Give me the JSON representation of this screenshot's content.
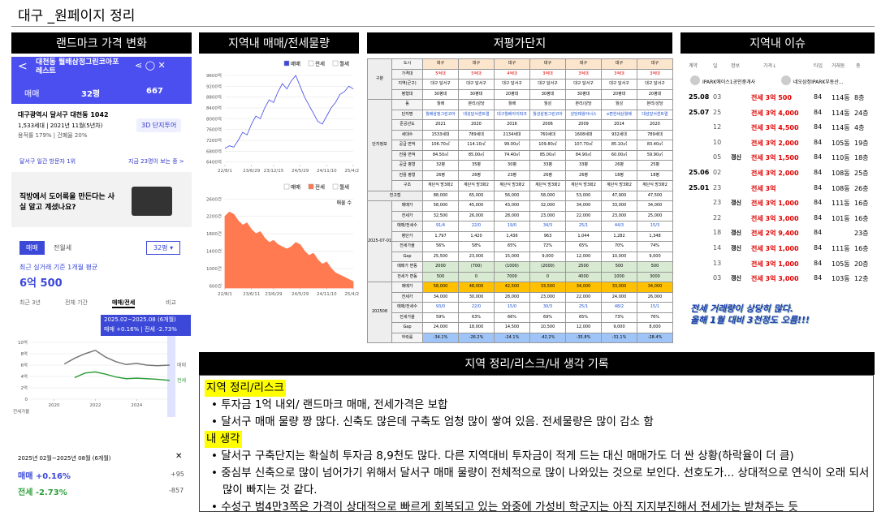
{
  "title": "대구 _원페이지 정리",
  "sections": {
    "landmark": "랜드마크 가격 변화",
    "trade": "지역내 매매/전세물량",
    "lowprice": "저평가단지",
    "issue": "지역내 이슈",
    "notes": "지역 정리/리스크/내 생각 기록"
  },
  "landmark": {
    "name": "대천동 월배삼정그린코아포레스트",
    "deal": "매매",
    "size": "32평",
    "count": "667",
    "address": "대구광역시 달서구 대천동 1042",
    "units": "1,533세대 | 2021년 11월(5년차)",
    "ratio": "용적률 179% | 건폐율 20%",
    "tour": "3D 단지투어",
    "visitor": "달서구 일간 방문자 1위",
    "watching": "지금 23명이 보는 중 >",
    "ad": "직방에서 도어록을 만든다는 사실 알고 계셨나요?",
    "tabs": [
      "매매",
      "전월세"
    ],
    "size2": "32평 ▾",
    "avg_label": "최근 실거래 기준 1개월 평균",
    "avg_value": "6억 500",
    "periods": [
      "최근 3년",
      "전체 기간",
      "매매/전세",
      "비교"
    ],
    "tooltip_period": "2025.02~2025.08 (6개월)",
    "tooltip_change": "매매 +0.16% | 전세 -2.73%",
    "ratio_label": "전세가율",
    "summary_period": "2025년 02월~2025년 08월 (6개월)",
    "summary": [
      {
        "label": "매매 +0.16%",
        "delta": "+95"
      },
      {
        "label": "전세 -2.73%",
        "delta": "-857"
      }
    ],
    "chart": {
      "type": "line",
      "x": [
        2019.0,
        2019.5,
        2020.0,
        2020.5,
        2021.0,
        2021.5,
        2022.0,
        2022.5,
        2023.0,
        2023.5,
        2024.0,
        2024.5,
        2025.0,
        2025.6
      ],
      "xlim": [
        2018.8,
        2025.8
      ],
      "xticks": [
        2020,
        2022,
        2024
      ],
      "ylim": [
        0,
        10
      ],
      "yticks": [
        {
          "value": 0,
          "label": "0"
        },
        {
          "value": 2,
          "label": "2억"
        },
        {
          "value": 4,
          "label": "4억"
        },
        {
          "value": 6,
          "label": "6억"
        },
        {
          "value": 8,
          "label": "8억"
        },
        {
          "value": 10,
          "label": "10억"
        }
      ],
      "series": [
        {
          "name": "매매",
          "color": "#777777",
          "values": [
            null,
            null,
            null,
            6.2,
            7.2,
            8.0,
            8.6,
            7.4,
            6.6,
            6.1,
            6.3,
            6.0,
            5.9,
            6.0
          ]
        },
        {
          "name": "전세",
          "color": "#2e9e3a",
          "values": [
            null,
            null,
            null,
            null,
            3.8,
            4.6,
            4.8,
            4.4,
            3.9,
            3.6,
            3.7,
            3.6,
            3.5,
            3.3
          ]
        }
      ]
    }
  },
  "trade": {
    "sale": {
      "type": "line",
      "legend": [
        "매매",
        "전세",
        "월세"
      ],
      "active": 0,
      "color": "#3c48e6",
      "values": [
        6900,
        7000,
        6950,
        7200,
        7500,
        7400,
        7800,
        8100,
        8000,
        8400,
        8700,
        8600,
        9000,
        9300,
        9100,
        9400,
        9600,
        9200,
        8800,
        8500,
        8200,
        7900,
        7800,
        8100,
        8400,
        8600,
        8900,
        9000,
        9200,
        9100
      ],
      "xlim": [
        0,
        29
      ],
      "xticks": [
        {
          "value": 0,
          "label": "22/8/1"
        },
        {
          "value": 6,
          "label": "23/6/29"
        },
        {
          "value": 11,
          "label": "23/12/15"
        },
        {
          "value": 17,
          "label": "24/5/29"
        },
        {
          "value": 23,
          "label": "24/11/10"
        },
        {
          "value": 29,
          "label": "25/4/25"
        }
      ],
      "ylim": [
        6300,
        9750
      ],
      "yticks": [
        {
          "value": 6400,
          "label": "6400억"
        },
        {
          "value": 6800,
          "label": "6800억"
        },
        {
          "value": 7200,
          "label": "7200억"
        },
        {
          "value": 7600,
          "label": "7600억"
        },
        {
          "value": 8000,
          "label": "8000억"
        },
        {
          "value": 8400,
          "label": "8400억"
        },
        {
          "value": 8800,
          "label": "8800억"
        },
        {
          "value": 9200,
          "label": "9200억"
        },
        {
          "value": 9600,
          "label": "9600억"
        }
      ]
    },
    "rent": {
      "type": "area",
      "legend": [
        "매매",
        "전세",
        "월세"
      ],
      "active": 1,
      "color": "#ff7a50",
      "label": "매물 수",
      "values": [
        2200,
        2300,
        2250,
        2100,
        2000,
        2050,
        1900,
        1800,
        1850,
        1700,
        1600,
        1650,
        1550,
        1500,
        1450,
        1500,
        1600,
        1550,
        1400,
        1300,
        1350,
        1200,
        1100,
        1150,
        1000,
        900,
        850,
        800,
        750,
        700
      ],
      "xlim": [
        0,
        29
      ],
      "xticks": [
        {
          "value": 0,
          "label": "22/8/1"
        },
        {
          "value": 6,
          "label": "23/6/11"
        },
        {
          "value": 11,
          "label": "23/6/29"
        },
        {
          "value": 17,
          "label": "24/5/29"
        },
        {
          "value": 23,
          "label": "24/11/10"
        },
        {
          "value": 29,
          "label": "25/4/25"
        }
      ],
      "ylim": [
        550,
        2700
      ],
      "yticks": [
        {
          "value": 600,
          "label": "600건"
        },
        {
          "value": 1000,
          "label": "1000건"
        },
        {
          "value": 1400,
          "label": "1400건"
        },
        {
          "value": 1800,
          "label": "1800건"
        },
        {
          "value": 2200,
          "label": "2200건"
        },
        {
          "value": 2600,
          "label": "2600건"
        }
      ]
    }
  },
  "table": {
    "groups": [
      {
        "label": "구분",
        "rows": [
          {
            "label": "도시",
            "cells": [
              "대구",
              "대구",
              "대구",
              "대구",
              "대구",
              "대구",
              "대구"
            ],
            "bg": "#fce5cd"
          },
          {
            "label": "가격대",
            "cells": [
              "5억대",
              "5억대",
              "4억대",
              "3억대",
              "3억대",
              "3억대",
              "3억대"
            ],
            "color": "#e00000"
          },
          {
            "label": "지역(군구)",
            "cells": [
              "대구 달서구",
              "대구 달서구",
              "대구 달서구",
              "대구 달서구",
              "대구 달서구",
              "대구 달서구",
              "대구 달서구"
            ]
          },
          {
            "label": "평형대",
            "cells": [
              "30평대",
              "30평대",
              "20평대",
              "30평대",
              "30평대",
              "20평대",
              "20평대"
            ]
          }
        ]
      },
      {
        "label": "단지정보",
        "rows": [
          {
            "label": "동",
            "cells": [
              "월배",
              "본리/성당",
              "월배",
              "월성",
              "본리/성당",
              "월성",
              "본리/성당"
            ]
          },
          {
            "label": "단지명",
            "cells": [
              "월배삼정그린코아",
              "대성달서센트럴",
              "대구월배아이파크",
              "월성삼정그린코아",
              "성당태왕아너스",
              "e편한세상월배",
              "대성달서센트럴"
            ],
            "color": "#1a4fd0"
          },
          {
            "label": "준공년도",
            "cells": [
              "2021",
              "2020",
              "2016",
              "2006",
              "2009",
              "2014",
              "2020"
            ]
          },
          {
            "label": "세대수",
            "cells": [
              "1533세대",
              "789세대",
              "2134세대",
              "760세대",
              "1608세대",
              "932세대",
              "789세대"
            ]
          },
          {
            "label": "공급 면적",
            "cells": [
              "106.70㎡",
              "114.10㎡",
              "99.00㎡",
              "109.80㎡",
              "107.70㎡",
              "85.10㎡",
              "83.40㎡"
            ]
          },
          {
            "label": "전용 면적",
            "cells": [
              "84.50㎡",
              "85.00㎡",
              "74.40㎡",
              "85.00㎡",
              "84.90㎡",
              "60.00㎡",
              "59.90㎡"
            ]
          },
          {
            "label": "공급 평형",
            "cells": [
              "32평",
              "35평",
              "30평",
              "33평",
              "33평",
              "26평",
              "25평"
            ]
          },
          {
            "label": "전용 평형",
            "cells": [
              "26평",
              "26평",
              "23평",
              "26평",
              "26평",
              "18평",
              "18평"
            ]
          },
          {
            "label": "구조",
            "cells": [
              "계단식 방3화2",
              "계단식 방3화2",
              "계단식 방3화2",
              "계단식 방3화2",
              "계단식 방3화2",
              "계단식 방3화2",
              "계단식 방3화2"
            ]
          }
        ]
      },
      {
        "label": "전고점",
        "rows": [
          {
            "cells": [
              "88,000",
              "65,000",
              "56,000",
              "58,000",
              "53,000",
              "47,900",
              "47,500"
            ]
          }
        ]
      },
      {
        "label": "2025-07-01",
        "rows": [
          {
            "label": "매매가",
            "cells": [
              "58,000",
              "45,000",
              "43,000",
              "32,000",
              "34,000",
              "33,000",
              "34,000"
            ]
          },
          {
            "label": "전세가",
            "cells": [
              "32,500",
              "26,000",
              "28,000",
              "23,000",
              "22,000",
              "23,000",
              "25,000"
            ]
          },
          {
            "label": "매매/전세수",
            "cells": [
              "91/4",
              "22/0",
              "19/0",
              "34/3",
              "25/1",
              "44/3",
              "15/3"
            ],
            "color": "#1a4fd0"
          },
          {
            "label": "평단가",
            "cells": [
              "1,797",
              "1,420",
              "1,436",
              "963",
              "1,044",
              "1,282",
              "1,348"
            ]
          },
          {
            "label": "전세가율",
            "cells": [
              "56%",
              "58%",
              "65%",
              "72%",
              "65%",
              "70%",
              "74%"
            ]
          },
          {
            "label": "Gap",
            "cells": [
              "25,500",
              "23,000",
              "15,000",
              "9,000",
              "12,000",
              "10,000",
              "9,000"
            ]
          },
          {
            "label": "매매가 변동",
            "cells": [
              "2000",
              "(700)",
              "(1000)",
              "(2000)",
              "2500",
              "500",
              "500"
            ],
            "bg": "#d9ead3"
          },
          {
            "label": "전세가 변동",
            "cells": [
              "500",
              "0",
              "7000",
              "0",
              "4000",
              "1000",
              "3000"
            ],
            "bg": "#d9ead3"
          }
        ]
      },
      {
        "label": "202508",
        "rows": [
          {
            "label": "매매가",
            "cells": [
              "58,000",
              "48,000",
              "42,500",
              "33,500",
              "34,000",
              "33,000",
              "34,000"
            ],
            "bg": "#ffc000"
          },
          {
            "label": "전세가",
            "cells": [
              "34,000",
              "30,000",
              "28,000",
              "23,000",
              "22,000",
              "24,000",
              "26,000"
            ]
          },
          {
            "label": "매매/전세수",
            "cells": [
              "93/0",
              "22/0",
              "15/0",
              "30/3",
              "25/1",
              "48/2",
              "15/1"
            ],
            "color": "#1a4fd0"
          },
          {
            "label": "전세가율",
            "cells": [
              "59%",
              "63%",
              "66%",
              "69%",
              "65%",
              "73%",
              "76%"
            ]
          },
          {
            "label": "Gap",
            "cells": [
              "24,000",
              "18,000",
              "14,500",
              "10,500",
              "12,000",
              "9,000",
              "8,000"
            ]
          },
          {
            "label": "하락률",
            "cells": [
              "-34.1%",
              "-26.2%",
              "-24.1%",
              "-42.2%",
              "-35.8%",
              "-31.1%",
              "-28.4%"
            ],
            "bg": "#9fc5f8"
          }
        ]
      }
    ]
  },
  "issue": {
    "columns": [
      "계약",
      "일",
      "정보",
      "가격↓",
      "타입",
      "거래동",
      "층"
    ],
    "agents": [
      "IPARK에이스1공인중개사",
      "네오삼정IPARK부동산..."
    ],
    "rows": [
      {
        "month": "25.08",
        "day": "03",
        "price": "전세 3억 500",
        "type": "84",
        "dong": "114동",
        "floor": "8층"
      },
      {
        "month": "25.07",
        "day": "25",
        "price": "전세 3억 4,000",
        "type": "84",
        "dong": "114동",
        "floor": "24층"
      },
      {
        "day": "12",
        "price": "전세 3억 4,500",
        "type": "84",
        "dong": "114동",
        "floor": "4층"
      },
      {
        "day": "10",
        "price": "전세 3억 2,000",
        "type": "84",
        "dong": "105동",
        "floor": "19층"
      },
      {
        "day": "05",
        "renew": "갱신",
        "price": "전세 3억 1,500",
        "type": "84",
        "dong": "110동",
        "floor": "18층"
      },
      {
        "month": "25.06",
        "day": "02",
        "price": "전세 3억 2,000",
        "type": "84",
        "dong": "108동",
        "floor": "25층"
      },
      {
        "month": "25.01",
        "day": "23",
        "price": "전세 3억",
        "type": "84",
        "dong": "108동",
        "floor": "26층"
      },
      {
        "day": "23",
        "renew": "갱신",
        "price": "전세 3억 1,000",
        "type": "84",
        "dong": "111동",
        "floor": "16층"
      },
      {
        "day": "22",
        "price": "전세 3억 3,000",
        "type": "84",
        "dong": "101동",
        "floor": "16층"
      },
      {
        "day": "18",
        "renew": "갱신",
        "price": "전세 2억 9,400",
        "type": "84",
        "floor": "23층"
      },
      {
        "day": "14",
        "renew": "갱신",
        "price": "전세 3억 1,000",
        "type": "84",
        "dong": "111동",
        "floor": "16층"
      },
      {
        "day": "13",
        "price": "전세 3억 1,000",
        "type": "84",
        "dong": "105동",
        "floor": "20층"
      },
      {
        "day": "03",
        "renew": "갱신",
        "price": "전세 3억 3,000",
        "type": "84",
        "dong": "103동",
        "floor": "12층"
      }
    ],
    "note": [
      "전세 거래량이 상당히 많다.",
      "올해 1월 대비 3천정도 오름!!!"
    ]
  },
  "notes": {
    "blocks": [
      {
        "heading": "지역 정리/리스크",
        "items": [
          "투자금 1억 내외/ 랜드마크 매매, 전세가격은 보합",
          "달서구 매매 물량 짱 많다. 신축도 많은데 구축도 엄청 많이 쌓여 있음. 전세물량은 많이 감소 함"
        ]
      },
      {
        "heading": "내 생각",
        "items": [
          "달서구 구축단지는 확실히 투자금 8,9천도 많다. 다른 지역대비 투자금이 적게 드는 대신 매매가도 더 싼 상황(하락율이 더 큼)",
          "중심부 신축으로 많이 넘어가기 위해서 달서구 매매 물량이 전체적으로 많이 나와있는 것으로 보인다. 선호도가... 상대적으로 연식이 오래 되서 많이 빠지는 것 같다.",
          "수성구 범4만3쪽은 가격이 상대적으로 빠르게 회복되고 있는 와중에 가성비 학군지는 아직 지지부진해서 전세가는 받쳐주는 듯"
        ]
      }
    ]
  }
}
